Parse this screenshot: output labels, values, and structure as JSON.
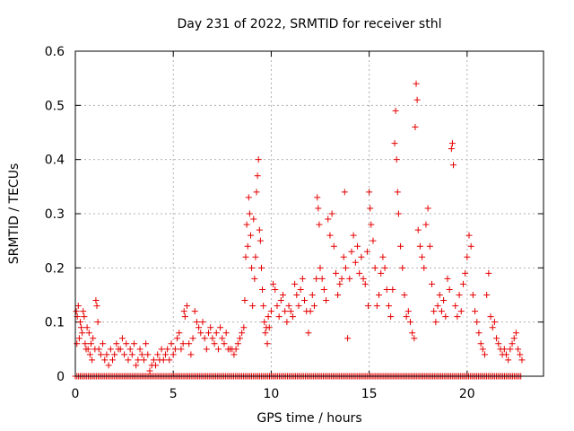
{
  "chart_data": {
    "type": "scatter",
    "title": "Day 231 of 2022, SRMTID for receiver sthl",
    "xlabel": "GPS time / hours",
    "ylabel": "SRMTID / TECUs",
    "xlim": [
      0,
      23.9
    ],
    "ylim": [
      0,
      0.6
    ],
    "x_ticks": [
      0,
      5,
      10,
      15,
      20
    ],
    "y_ticks": [
      0,
      0.1,
      0.2,
      0.3,
      0.4,
      0.5,
      0.6
    ],
    "y_tick_labels": [
      "0",
      "0.1",
      "0.2",
      "0.3",
      "0.4",
      "0.5",
      "0.6"
    ],
    "grid": true,
    "marker": "+",
    "color": "#e60000",
    "baseline": {
      "value": 0,
      "x_start": 0,
      "x_end": 22.8,
      "step": 0.0833
    },
    "series": [
      {
        "name": "SRMTID",
        "points": [
          [
            0.05,
            0.12
          ],
          [
            0.08,
            0.06
          ],
          [
            0.1,
            0.11
          ],
          [
            0.15,
            0.13
          ],
          [
            0.2,
            0.07
          ],
          [
            0.25,
            0.1
          ],
          [
            0.3,
            0.09
          ],
          [
            0.35,
            0.08
          ],
          [
            0.4,
            0.12
          ],
          [
            0.45,
            0.11
          ],
          [
            0.5,
            0.06
          ],
          [
            0.55,
            0.05
          ],
          [
            0.6,
            0.09
          ],
          [
            0.65,
            0.05
          ],
          [
            0.7,
            0.08
          ],
          [
            0.75,
            0.04
          ],
          [
            0.8,
            0.06
          ],
          [
            0.85,
            0.03
          ],
          [
            0.9,
            0.07
          ],
          [
            1.0,
            0.05
          ],
          [
            1.05,
            0.14
          ],
          [
            1.1,
            0.13
          ],
          [
            1.15,
            0.1
          ],
          [
            1.2,
            0.05
          ],
          [
            1.3,
            0.04
          ],
          [
            1.4,
            0.06
          ],
          [
            1.5,
            0.03
          ],
          [
            1.6,
            0.04
          ],
          [
            1.7,
            0.02
          ],
          [
            1.8,
            0.05
          ],
          [
            1.9,
            0.03
          ],
          [
            2.0,
            0.04
          ],
          [
            2.1,
            0.06
          ],
          [
            2.2,
            0.05
          ],
          [
            2.3,
            0.05
          ],
          [
            2.4,
            0.07
          ],
          [
            2.5,
            0.04
          ],
          [
            2.6,
            0.06
          ],
          [
            2.7,
            0.03
          ],
          [
            2.8,
            0.05
          ],
          [
            2.9,
            0.04
          ],
          [
            3.0,
            0.06
          ],
          [
            3.1,
            0.02
          ],
          [
            3.2,
            0.03
          ],
          [
            3.3,
            0.05
          ],
          [
            3.4,
            0.04
          ],
          [
            3.5,
            0.03
          ],
          [
            3.6,
            0.06
          ],
          [
            3.7,
            0.04
          ],
          [
            3.8,
            0.01
          ],
          [
            3.9,
            0.02
          ],
          [
            4.0,
            0.03
          ],
          [
            4.1,
            0.02
          ],
          [
            4.2,
            0.04
          ],
          [
            4.3,
            0.03
          ],
          [
            4.4,
            0.05
          ],
          [
            4.5,
            0.03
          ],
          [
            4.6,
            0.04
          ],
          [
            4.7,
            0.05
          ],
          [
            4.8,
            0.03
          ],
          [
            4.9,
            0.06
          ],
          [
            5.0,
            0.04
          ],
          [
            5.1,
            0.05
          ],
          [
            5.2,
            0.07
          ],
          [
            5.3,
            0.08
          ],
          [
            5.4,
            0.05
          ],
          [
            5.5,
            0.06
          ],
          [
            5.55,
            0.12
          ],
          [
            5.6,
            0.11
          ],
          [
            5.7,
            0.13
          ],
          [
            5.8,
            0.06
          ],
          [
            5.9,
            0.04
          ],
          [
            6.0,
            0.07
          ],
          [
            6.1,
            0.12
          ],
          [
            6.2,
            0.1
          ],
          [
            6.3,
            0.09
          ],
          [
            6.4,
            0.08
          ],
          [
            6.5,
            0.1
          ],
          [
            6.6,
            0.07
          ],
          [
            6.7,
            0.05
          ],
          [
            6.8,
            0.08
          ],
          [
            6.9,
            0.09
          ],
          [
            7.0,
            0.07
          ],
          [
            7.1,
            0.06
          ],
          [
            7.2,
            0.08
          ],
          [
            7.3,
            0.05
          ],
          [
            7.4,
            0.09
          ],
          [
            7.5,
            0.07
          ],
          [
            7.6,
            0.06
          ],
          [
            7.7,
            0.08
          ],
          [
            7.8,
            0.05
          ],
          [
            7.9,
            0.05
          ],
          [
            8.0,
            0.05
          ],
          [
            8.1,
            0.04
          ],
          [
            8.2,
            0.05
          ],
          [
            8.3,
            0.06
          ],
          [
            8.4,
            0.07
          ],
          [
            8.5,
            0.08
          ],
          [
            8.6,
            0.09
          ],
          [
            8.65,
            0.14
          ],
          [
            8.7,
            0.22
          ],
          [
            8.75,
            0.28
          ],
          [
            8.8,
            0.24
          ],
          [
            8.85,
            0.33
          ],
          [
            8.9,
            0.3
          ],
          [
            8.95,
            0.26
          ],
          [
            9.0,
            0.2
          ],
          [
            9.05,
            0.13
          ],
          [
            9.1,
            0.29
          ],
          [
            9.15,
            0.18
          ],
          [
            9.2,
            0.22
          ],
          [
            9.25,
            0.34
          ],
          [
            9.3,
            0.37
          ],
          [
            9.35,
            0.4
          ],
          [
            9.4,
            0.27
          ],
          [
            9.45,
            0.25
          ],
          [
            9.5,
            0.2
          ],
          [
            9.55,
            0.16
          ],
          [
            9.6,
            0.13
          ],
          [
            9.65,
            0.1
          ],
          [
            9.7,
            0.08
          ],
          [
            9.75,
            0.09
          ],
          [
            9.8,
            0.06
          ],
          [
            9.85,
            0.11
          ],
          [
            9.9,
            0.09
          ],
          [
            10.0,
            0.12
          ],
          [
            10.1,
            0.17
          ],
          [
            10.2,
            0.16
          ],
          [
            10.3,
            0.13
          ],
          [
            10.4,
            0.11
          ],
          [
            10.5,
            0.14
          ],
          [
            10.6,
            0.15
          ],
          [
            10.7,
            0.12
          ],
          [
            10.8,
            0.1
          ],
          [
            10.9,
            0.13
          ],
          [
            11.0,
            0.12
          ],
          [
            11.1,
            0.11
          ],
          [
            11.2,
            0.17
          ],
          [
            11.3,
            0.15
          ],
          [
            11.4,
            0.13
          ],
          [
            11.5,
            0.16
          ],
          [
            11.6,
            0.18
          ],
          [
            11.7,
            0.14
          ],
          [
            11.8,
            0.12
          ],
          [
            11.9,
            0.08
          ],
          [
            12.0,
            0.12
          ],
          [
            12.1,
            0.15
          ],
          [
            12.2,
            0.13
          ],
          [
            12.3,
            0.18
          ],
          [
            12.35,
            0.33
          ],
          [
            12.4,
            0.31
          ],
          [
            12.45,
            0.28
          ],
          [
            12.5,
            0.2
          ],
          [
            12.6,
            0.18
          ],
          [
            12.7,
            0.16
          ],
          [
            12.8,
            0.14
          ],
          [
            12.9,
            0.29
          ],
          [
            13.0,
            0.26
          ],
          [
            13.1,
            0.3
          ],
          [
            13.2,
            0.24
          ],
          [
            13.3,
            0.19
          ],
          [
            13.4,
            0.15
          ],
          [
            13.5,
            0.17
          ],
          [
            13.6,
            0.18
          ],
          [
            13.7,
            0.22
          ],
          [
            13.75,
            0.34
          ],
          [
            13.8,
            0.2
          ],
          [
            13.9,
            0.07
          ],
          [
            14.0,
            0.18
          ],
          [
            14.1,
            0.23
          ],
          [
            14.2,
            0.26
          ],
          [
            14.3,
            0.21
          ],
          [
            14.4,
            0.24
          ],
          [
            14.5,
            0.19
          ],
          [
            14.6,
            0.22
          ],
          [
            14.7,
            0.18
          ],
          [
            14.8,
            0.17
          ],
          [
            14.9,
            0.23
          ],
          [
            14.95,
            0.13
          ],
          [
            15.0,
            0.34
          ],
          [
            15.05,
            0.31
          ],
          [
            15.1,
            0.28
          ],
          [
            15.2,
            0.25
          ],
          [
            15.3,
            0.2
          ],
          [
            15.4,
            0.13
          ],
          [
            15.5,
            0.15
          ],
          [
            15.6,
            0.19
          ],
          [
            15.7,
            0.22
          ],
          [
            15.8,
            0.2
          ],
          [
            15.9,
            0.16
          ],
          [
            16.0,
            0.13
          ],
          [
            16.1,
            0.11
          ],
          [
            16.2,
            0.16
          ],
          [
            16.3,
            0.43
          ],
          [
            16.35,
            0.49
          ],
          [
            16.4,
            0.4
          ],
          [
            16.45,
            0.34
          ],
          [
            16.5,
            0.3
          ],
          [
            16.6,
            0.24
          ],
          [
            16.7,
            0.2
          ],
          [
            16.8,
            0.15
          ],
          [
            16.9,
            0.11
          ],
          [
            17.0,
            0.12
          ],
          [
            17.1,
            0.1
          ],
          [
            17.2,
            0.08
          ],
          [
            17.3,
            0.07
          ],
          [
            17.35,
            0.46
          ],
          [
            17.4,
            0.54
          ],
          [
            17.45,
            0.51
          ],
          [
            17.5,
            0.27
          ],
          [
            17.6,
            0.24
          ],
          [
            17.7,
            0.22
          ],
          [
            17.8,
            0.2
          ],
          [
            17.9,
            0.28
          ],
          [
            18.0,
            0.31
          ],
          [
            18.1,
            0.24
          ],
          [
            18.2,
            0.17
          ],
          [
            18.3,
            0.12
          ],
          [
            18.4,
            0.1
          ],
          [
            18.5,
            0.13
          ],
          [
            18.6,
            0.15
          ],
          [
            18.7,
            0.12
          ],
          [
            18.8,
            0.14
          ],
          [
            18.9,
            0.11
          ],
          [
            19.0,
            0.18
          ],
          [
            19.1,
            0.16
          ],
          [
            19.2,
            0.42
          ],
          [
            19.25,
            0.43
          ],
          [
            19.3,
            0.39
          ],
          [
            19.4,
            0.13
          ],
          [
            19.5,
            0.11
          ],
          [
            19.6,
            0.15
          ],
          [
            19.7,
            0.12
          ],
          [
            19.8,
            0.17
          ],
          [
            19.9,
            0.19
          ],
          [
            20.0,
            0.22
          ],
          [
            20.1,
            0.26
          ],
          [
            20.2,
            0.24
          ],
          [
            20.3,
            0.15
          ],
          [
            20.4,
            0.12
          ],
          [
            20.5,
            0.1
          ],
          [
            20.6,
            0.08
          ],
          [
            20.7,
            0.06
          ],
          [
            20.8,
            0.05
          ],
          [
            20.9,
            0.04
          ],
          [
            21.0,
            0.15
          ],
          [
            21.1,
            0.19
          ],
          [
            21.2,
            0.11
          ],
          [
            21.3,
            0.09
          ],
          [
            21.4,
            0.1
          ],
          [
            21.5,
            0.07
          ],
          [
            21.6,
            0.06
          ],
          [
            21.7,
            0.05
          ],
          [
            21.8,
            0.04
          ],
          [
            21.9,
            0.05
          ],
          [
            22.0,
            0.04
          ],
          [
            22.1,
            0.03
          ],
          [
            22.2,
            0.05
          ],
          [
            22.3,
            0.06
          ],
          [
            22.4,
            0.07
          ],
          [
            22.5,
            0.08
          ],
          [
            22.6,
            0.05
          ],
          [
            22.7,
            0.04
          ],
          [
            22.8,
            0.03
          ]
        ]
      }
    ]
  }
}
